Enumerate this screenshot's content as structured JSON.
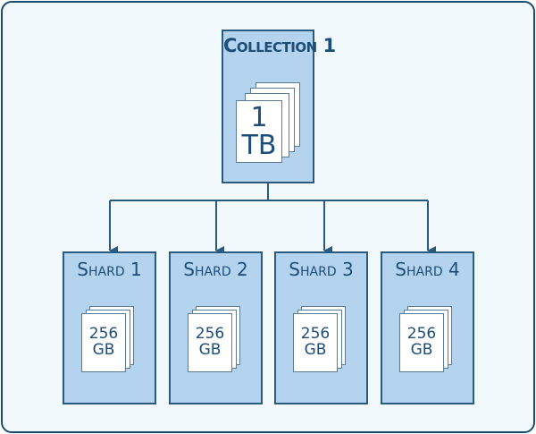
{
  "collection": {
    "title": "Collection 1",
    "size_value": "1",
    "size_unit": "TB"
  },
  "shards": [
    {
      "title": "Shard 1",
      "size_value": "256",
      "size_unit": "GB"
    },
    {
      "title": "Shard 2",
      "size_value": "256",
      "size_unit": "GB"
    },
    {
      "title": "Shard 3",
      "size_value": "256",
      "size_unit": "GB"
    },
    {
      "title": "Shard 4",
      "size_value": "256",
      "size_unit": "GB"
    }
  ],
  "colors": {
    "box_fill": "#b4d3ee",
    "box_border": "#2a5a80",
    "text": "#1d4e78",
    "connector": "#2a5a80",
    "background": "#f2f9fc"
  }
}
